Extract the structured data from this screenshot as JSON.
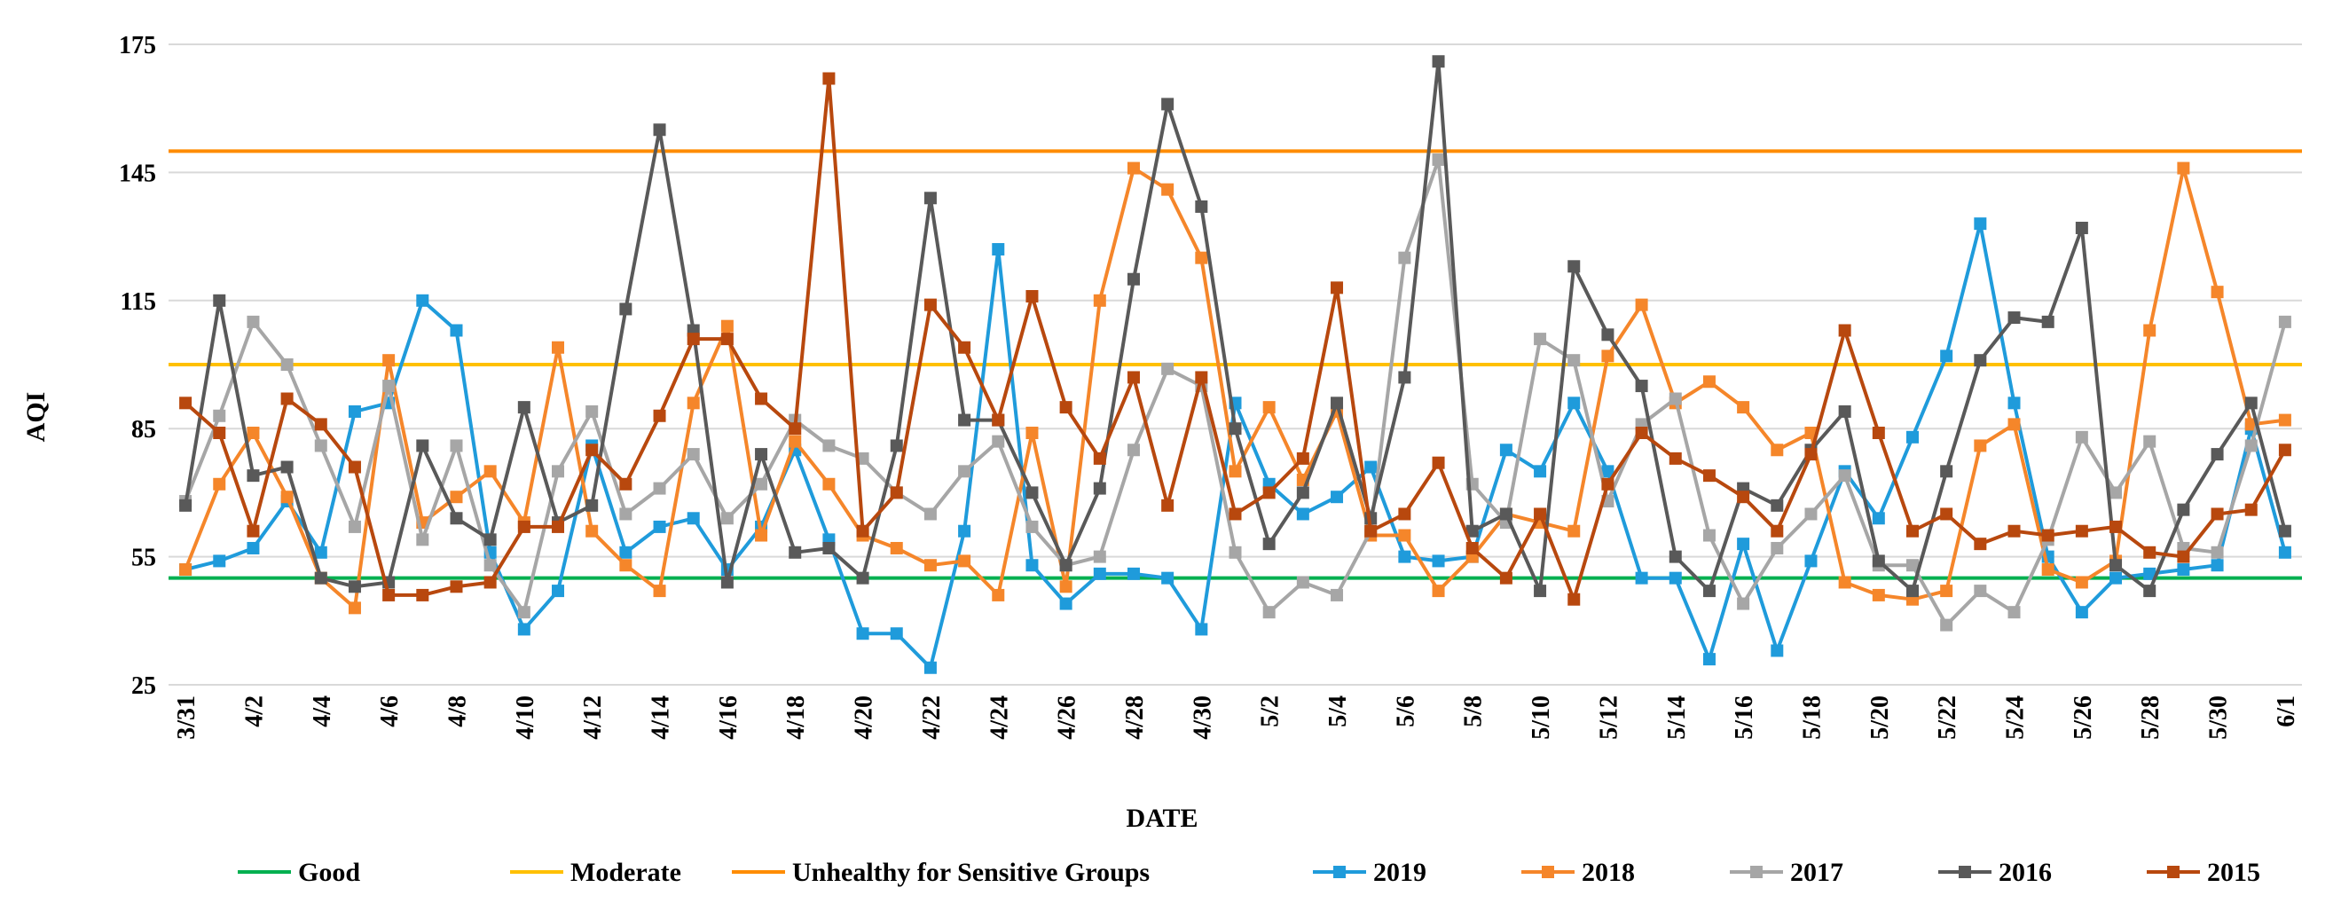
{
  "chart_data": {
    "type": "line",
    "title": "",
    "xlabel": "DATE",
    "ylabel": "AQI",
    "ylim": [
      25,
      175
    ],
    "yticks": [
      25,
      55,
      85,
      115,
      145,
      175
    ],
    "grid": "horizontal",
    "legend_position": "bottom",
    "x": [
      "3/31",
      "4/1",
      "4/2",
      "4/3",
      "4/4",
      "4/5",
      "4/6",
      "4/7",
      "4/8",
      "4/9",
      "4/10",
      "4/11",
      "4/12",
      "4/13",
      "4/14",
      "4/15",
      "4/16",
      "4/17",
      "4/18",
      "4/19",
      "4/20",
      "4/21",
      "4/22",
      "4/23",
      "4/24",
      "4/25",
      "4/26",
      "4/27",
      "4/28",
      "4/29",
      "4/30",
      "5/1",
      "5/2",
      "5/3",
      "5/4",
      "5/5",
      "5/6",
      "5/7",
      "5/8",
      "5/9",
      "5/10",
      "5/11",
      "5/12",
      "5/13",
      "5/14",
      "5/15",
      "5/16",
      "5/17",
      "5/18",
      "5/19",
      "5/20",
      "5/21",
      "5/22",
      "5/23",
      "5/24",
      "5/25",
      "5/26",
      "5/27",
      "5/28",
      "5/29",
      "5/30",
      "5/31",
      "6/1"
    ],
    "xtick_labels": [
      "3/31",
      "4/2",
      "4/4",
      "4/6",
      "4/8",
      "4/10",
      "4/12",
      "4/14",
      "4/16",
      "4/18",
      "4/20",
      "4/22",
      "4/24",
      "4/26",
      "4/28",
      "4/30",
      "5/2",
      "5/4",
      "5/6",
      "5/8",
      "5/10",
      "5/12",
      "5/14",
      "5/16",
      "5/18",
      "5/20",
      "5/22",
      "5/24",
      "5/26",
      "5/28",
      "5/30",
      "6/1"
    ],
    "reference_lines": [
      {
        "name": "Good",
        "value": 50,
        "color": "#00B050"
      },
      {
        "name": "Moderate",
        "value": 100,
        "color": "#FFC000"
      },
      {
        "name": "Unhealthy for Sensitive Groups",
        "value": 150,
        "color": "#FF8C00"
      }
    ],
    "series": [
      {
        "name": "2019",
        "color": "#1F9BDB",
        "values": [
          52,
          54,
          57,
          68,
          56,
          89,
          91,
          115,
          108,
          56,
          38,
          47,
          81,
          56,
          62,
          64,
          52,
          62,
          80,
          59,
          37,
          37,
          29,
          61,
          127,
          53,
          44,
          51,
          51,
          50,
          38,
          91,
          72,
          65,
          69,
          76,
          55,
          54,
          55,
          80,
          75,
          91,
          75,
          50,
          50,
          31,
          58,
          33,
          54,
          75,
          64,
          83,
          102,
          133,
          91,
          55,
          42,
          50,
          51,
          52,
          53,
          85,
          56
        ]
      },
      {
        "name": "2018",
        "color": "#F5862A",
        "values": [
          52,
          72,
          84,
          69,
          50,
          43,
          101,
          63,
          69,
          75,
          63,
          104,
          61,
          53,
          47,
          91,
          109,
          60,
          82,
          72,
          60,
          57,
          53,
          54,
          46,
          84,
          48,
          115,
          146,
          141,
          125,
          75,
          90,
          73,
          89,
          60,
          60,
          47,
          55,
          65,
          63,
          61,
          102,
          114,
          91,
          96,
          90,
          80,
          84,
          49,
          46,
          45,
          47,
          81,
          86,
          52,
          49,
          54,
          108,
          146,
          117,
          86,
          87
        ]
      },
      {
        "name": "2017",
        "color": "#A6A6A6",
        "values": [
          68,
          88,
          110,
          100,
          81,
          62,
          95,
          59,
          81,
          53,
          42,
          75,
          89,
          65,
          71,
          79,
          64,
          72,
          87,
          81,
          78,
          70,
          65,
          75,
          82,
          62,
          53,
          55,
          80,
          99,
          95,
          56,
          42,
          49,
          46,
          61,
          125,
          148,
          72,
          63,
          106,
          101,
          68,
          86,
          92,
          60,
          44,
          57,
          65,
          74,
          53,
          53,
          39,
          47,
          42,
          59,
          83,
          70,
          82,
          57,
          56,
          81,
          110
        ]
      },
      {
        "name": "2016",
        "color": "#595959",
        "values": [
          67,
          115,
          74,
          76,
          50,
          48,
          49,
          81,
          64,
          59,
          90,
          63,
          67,
          113,
          155,
          108,
          49,
          79,
          56,
          57,
          50,
          81,
          139,
          87,
          87,
          70,
          53,
          71,
          120,
          161,
          137,
          85,
          58,
          70,
          91,
          64,
          97,
          171,
          61,
          65,
          47,
          123,
          107,
          95,
          55,
          47,
          71,
          67,
          80,
          89,
          54,
          47,
          75,
          101,
          111,
          110,
          132,
          53,
          47,
          66,
          79,
          91,
          61
        ]
      },
      {
        "name": "2015",
        "color": "#B8480E",
        "values": [
          91,
          84,
          61,
          92,
          86,
          76,
          46,
          46,
          48,
          49,
          62,
          62,
          80,
          72,
          88,
          106,
          106,
          92,
          85,
          167,
          61,
          70,
          114,
          104,
          87,
          116,
          90,
          78,
          97,
          67,
          97,
          65,
          70,
          78,
          118,
          61,
          65,
          77,
          57,
          50,
          65,
          45,
          72,
          84,
          78,
          74,
          69,
          61,
          79,
          108,
          84,
          61,
          65,
          58,
          61,
          60,
          61,
          62,
          56,
          55,
          65,
          66,
          80
        ]
      }
    ]
  }
}
